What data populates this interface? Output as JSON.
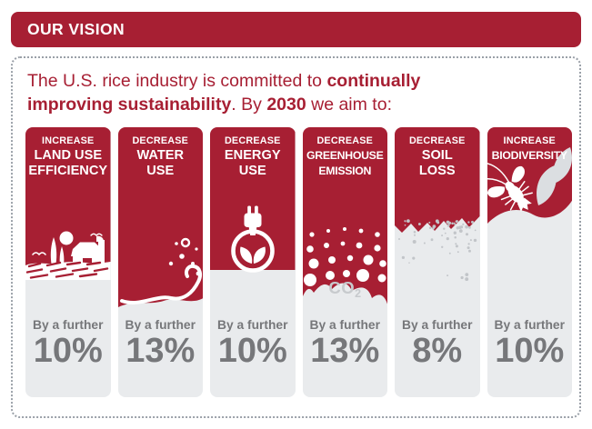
{
  "header": {
    "title": "OUR VISION"
  },
  "intro": {
    "part1": "The U.S. rice industry is committed to ",
    "bold1": "continually improving sustainability",
    "part2": ". By ",
    "bold2": "2030",
    "part3": " we aim to:"
  },
  "goals": [
    {
      "direction": "INCREASE",
      "line1": "LAND USE",
      "line2": "EFFICIENCY",
      "prefix": "By a further",
      "value": "10%",
      "icon": "farm-icon"
    },
    {
      "direction": "DECREASE",
      "line1": "WATER",
      "line2": "USE",
      "prefix": "By a further",
      "value": "13%",
      "icon": "water-splash-icon"
    },
    {
      "direction": "DECREASE",
      "line1": "ENERGY",
      "line2": "USE",
      "prefix": "By a further",
      "value": "10%",
      "icon": "plug-leaf-icon"
    },
    {
      "direction": "DECREASE",
      "line1": "GREENHOUSE",
      "line2": "EMISSION",
      "prefix": "By a further",
      "value": "13%",
      "icon": "co2-bubbles-icon",
      "co2_main": "CO",
      "co2_sub": "2"
    },
    {
      "direction": "DECREASE",
      "line1": "SOIL",
      "line2": "LOSS",
      "prefix": "By a further",
      "value": "8%",
      "icon": "soil-erosion-icon"
    },
    {
      "direction": "INCREASE",
      "line1": "BIODIVERSITY",
      "prefix": "By a further",
      "value": "10%",
      "icon": "crawfish-leaf-icon"
    }
  ],
  "colors": {
    "brand_red": "#A71F33",
    "panel_gray": "#E9EBED",
    "label_gray": "#76777A",
    "co2_gray": "#C7CACD",
    "dotted_border": "#9AA0A8"
  }
}
